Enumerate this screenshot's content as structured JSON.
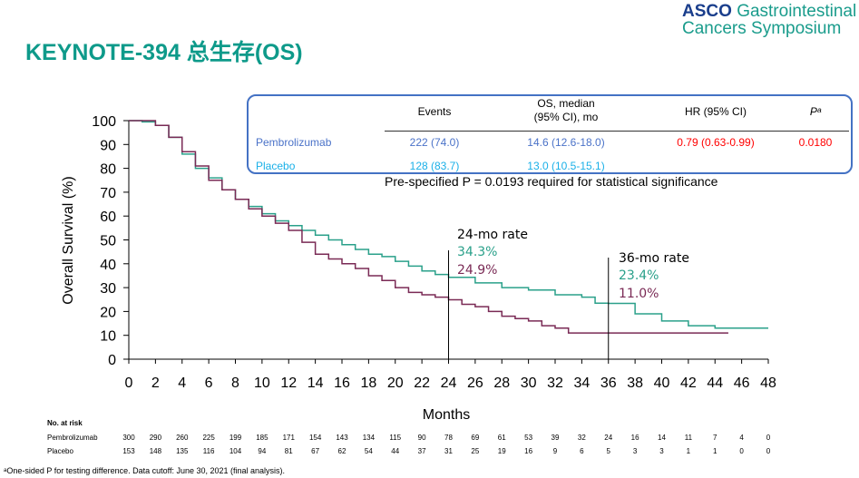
{
  "title": "KEYNOTE-394 总生存(OS)",
  "logo": {
    "brand": "ASCO",
    "line1": "Gastrointestinal",
    "line2": "Cancers Symposium"
  },
  "table": {
    "headers": [
      "Events",
      "OS, median\n(95% CI), mo",
      "HR (95% CI)",
      "Pᵃ"
    ],
    "rows": [
      {
        "arm": "Pembrolizumab",
        "events": "222 (74.0)",
        "os": "14.6 (12.6-18.0)",
        "hr": "0.79 (0.63-0.99)",
        "p": "0.0180"
      },
      {
        "arm": "Placebo",
        "events": "128 (83.7)",
        "os": "13.0 (10.5-15.1)",
        "hr": "",
        "p": ""
      }
    ]
  },
  "significance": "Pre-specified P = 0.0193 required for statistical significance",
  "annotations": {
    "r24": {
      "label": "24-mo rate",
      "pembro": "34.3%",
      "placebo": "24.9%"
    },
    "r36": {
      "label": "36-mo rate",
      "pembro": "23.4%",
      "placebo": "11.0%"
    }
  },
  "risk": {
    "title": "No. at risk",
    "rows": [
      {
        "name": "Pembrolizumab",
        "values": [
          300,
          290,
          260,
          225,
          199,
          185,
          171,
          154,
          143,
          134,
          115,
          90,
          78,
          69,
          61,
          53,
          39,
          32,
          24,
          16,
          14,
          11,
          7,
          4,
          0
        ]
      },
      {
        "name": "Placebo",
        "values": [
          153,
          148,
          135,
          116,
          104,
          94,
          81,
          67,
          62,
          54,
          44,
          37,
          31,
          25,
          19,
          16,
          9,
          6,
          5,
          3,
          3,
          1,
          1,
          0,
          0
        ]
      }
    ]
  },
  "footnote": "ᵃOne-sided P for testing difference. Data cutoff: June 30, 2021 (final analysis).",
  "colors": {
    "pembro": "#2aa08a",
    "placebo": "#7a2a55",
    "title": "#0e9a8a"
  },
  "chart_data": {
    "type": "line",
    "xlabel": "Months",
    "ylabel": "Overall Survival (%)",
    "xlim": [
      0,
      48
    ],
    "ylim": [
      0,
      100
    ],
    "xticks": [
      0,
      2,
      4,
      6,
      8,
      10,
      12,
      14,
      16,
      18,
      20,
      22,
      24,
      26,
      28,
      30,
      32,
      34,
      36,
      38,
      40,
      42,
      44,
      46,
      48
    ],
    "yticks": [
      0,
      10,
      20,
      30,
      40,
      50,
      60,
      70,
      80,
      90,
      100
    ],
    "series": [
      {
        "name": "Pembrolizumab",
        "x": [
          0,
          1,
          2,
          3,
          4,
          5,
          6,
          7,
          8,
          9,
          10,
          11,
          12,
          13,
          14,
          15,
          16,
          17,
          18,
          19,
          20,
          21,
          22,
          23,
          24,
          26,
          28,
          30,
          32,
          34,
          35,
          36,
          38,
          40,
          42,
          44,
          46,
          48
        ],
        "y": [
          100,
          99.5,
          98,
          93,
          86,
          80,
          76,
          71,
          67,
          64,
          61,
          58,
          56,
          54,
          52,
          50,
          48,
          46,
          44,
          43,
          41,
          39,
          37,
          35.5,
          34.3,
          32,
          30,
          29,
          27,
          26,
          23.5,
          23.4,
          19,
          16,
          14,
          13,
          13,
          13
        ]
      },
      {
        "name": "Placebo",
        "x": [
          0,
          2,
          3,
          4,
          5,
          6,
          7,
          8,
          9,
          10,
          11,
          12,
          13,
          14,
          15,
          16,
          17,
          18,
          19,
          20,
          21,
          22,
          23,
          24,
          25,
          26,
          27,
          28,
          29,
          30,
          31,
          32,
          33,
          36,
          45
        ],
        "y": [
          100,
          98,
          93,
          87,
          81,
          75,
          71,
          67,
          63,
          60,
          57,
          54,
          49,
          44,
          42,
          40,
          38,
          35,
          33,
          30,
          28,
          27,
          26,
          24.9,
          23,
          22,
          20,
          18,
          17,
          16,
          14,
          13,
          11,
          11,
          11
        ]
      }
    ]
  }
}
